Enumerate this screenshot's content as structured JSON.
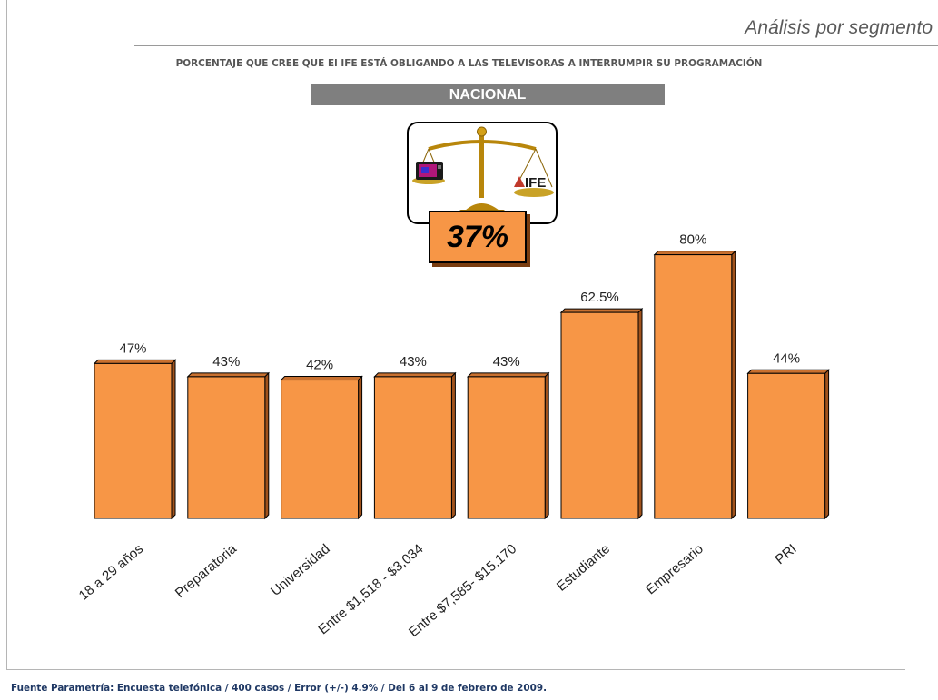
{
  "header": {
    "section_title": "Análisis por segmento",
    "subtitle": "PORCENTAJE QUE CREE QUE El IFE ESTÁ OBLIGANDO A LAS TELEVISORAS A INTERRUMPIR SU PROGRAMACIÓN",
    "banner": "NACIONAL"
  },
  "national": {
    "value_label": "37%",
    "icon_text": "IFE"
  },
  "chart_data": {
    "type": "bar",
    "categories": [
      "18 a 29 años",
      "Preparatoria",
      "Universidad",
      "Entre $1,518 - $3,034",
      "Entre $7,585- $15,170",
      "Estudiante",
      "Empresario",
      "PRI"
    ],
    "values": [
      47,
      43,
      42,
      43,
      43,
      62.5,
      80,
      44
    ],
    "data_labels": [
      "47%",
      "43%",
      "42%",
      "43%",
      "43%",
      "62.5%",
      "80%",
      "44%"
    ],
    "unit": "%",
    "bar_color": "#f79646",
    "ylim": [
      0,
      100
    ],
    "grid": false,
    "legend": "none"
  },
  "footer": {
    "source": "Fuente Parametría: Encuesta telefónica / 400 casos / Error (+/-) 4.9% / Del 6 al 9 de febrero de 2009."
  }
}
